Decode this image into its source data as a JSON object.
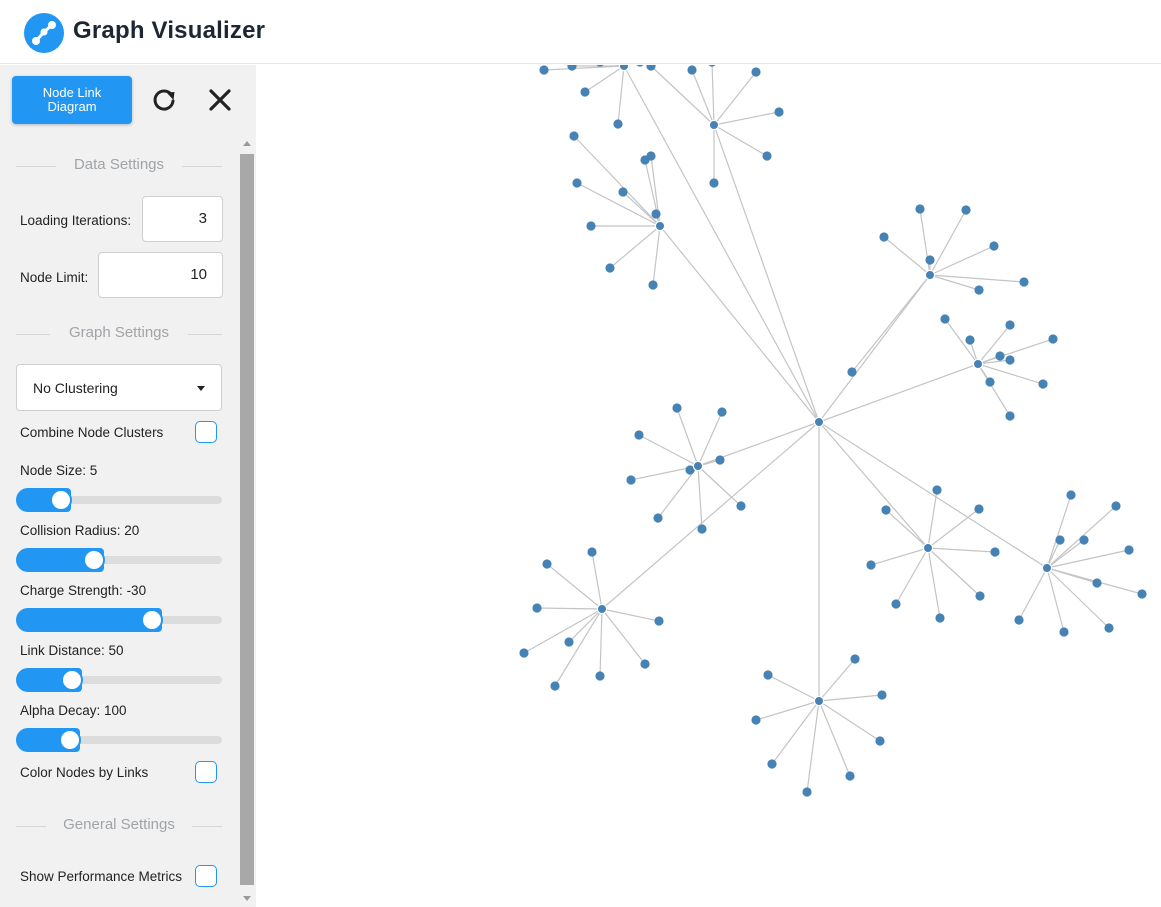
{
  "header": {
    "title": "Graph Visualizer",
    "logo_icon": "graph-logo-icon",
    "accent": "#2196f3"
  },
  "sidebar": {
    "mode_button": "Node Link Diagram",
    "refresh_icon": "refresh-icon",
    "close_icon": "close-icon",
    "data_settings": {
      "title": "Data Settings",
      "loading_iterations_label": "Loading Iterations:",
      "loading_iterations_value": "3",
      "node_limit_label": "Node Limit:",
      "node_limit_value": "10"
    },
    "graph_settings": {
      "title": "Graph Settings",
      "clustering_value": "No Clustering",
      "combine_clusters_label": "Combine Node Clusters",
      "combine_clusters_checked": false,
      "sliders": [
        {
          "label": "Node Size: 5",
          "fraction": 0.18
        },
        {
          "label": "Collision Radius: 20",
          "fraction": 0.36
        },
        {
          "label": "Charge Strength: -30",
          "fraction": 0.68
        },
        {
          "label": "Link Distance: 50",
          "fraction": 0.24
        },
        {
          "label": "Alpha Decay: 100",
          "fraction": 0.23
        }
      ],
      "color_by_links_label": "Color Nodes by Links",
      "color_by_links_checked": false
    },
    "general_settings": {
      "title": "General Settings",
      "show_metrics_label": "Show Performance Metrics",
      "show_metrics_checked": false
    }
  },
  "graph": {
    "node_color": "#4682b4",
    "link_color": "#c4c4c4",
    "hubs": [
      {
        "id": "h0",
        "leaves": 0
      },
      {
        "id": "h1",
        "parent": "h0",
        "leaves": 7
      },
      {
        "id": "h2",
        "parent": "h0",
        "leaves": 9
      },
      {
        "id": "h3",
        "parent": "h0",
        "leaves": 8
      },
      {
        "id": "h4",
        "parent": "h0",
        "leaves": 9
      },
      {
        "id": "h5",
        "parent": "h0",
        "leaves": 9
      },
      {
        "id": "h6",
        "parent": "h0",
        "leaves": 9
      },
      {
        "id": "h7",
        "parent": "h0",
        "leaves": 8
      },
      {
        "id": "h8",
        "parent": "h0",
        "leaves": 10
      },
      {
        "id": "h9",
        "parent": "h0",
        "leaves": 7
      },
      {
        "id": "h10",
        "parent": "h0",
        "leaves": 6
      }
    ]
  }
}
